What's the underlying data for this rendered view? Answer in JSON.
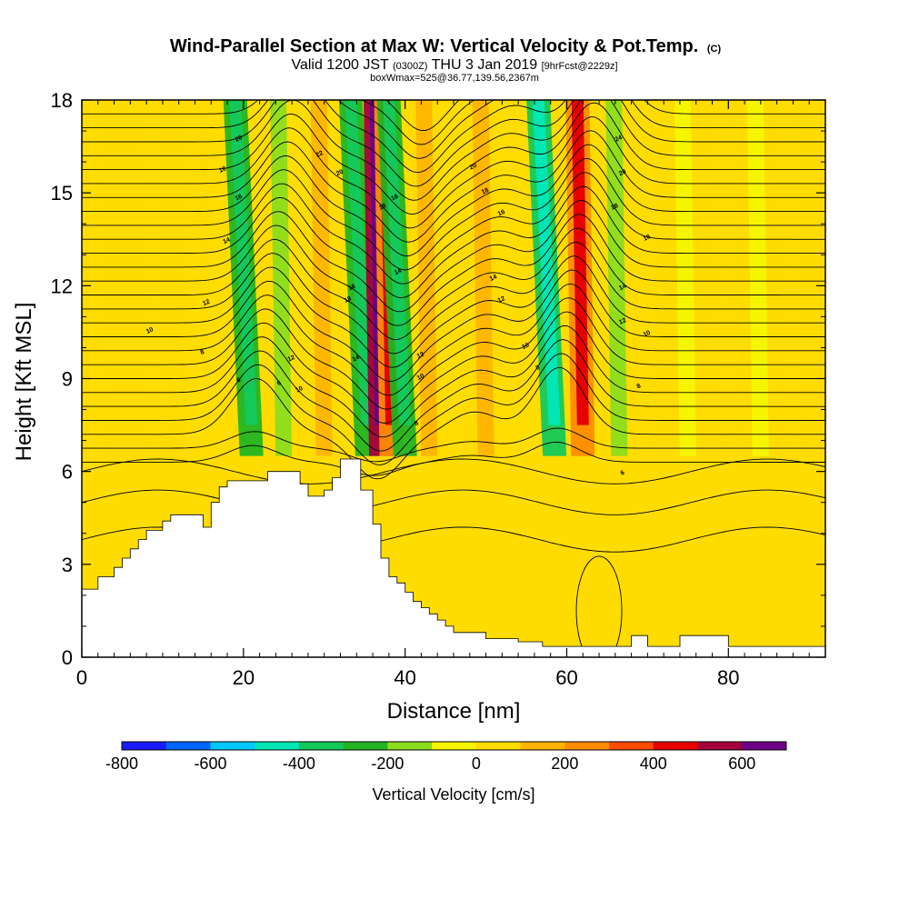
{
  "chart_data": {
    "type": "heatmap",
    "title": "Wind-Parallel Section at Max W: Vertical Velocity & Pot.Temp.",
    "title_mark": "(C)",
    "subtitle_parts": [
      "Valid 1200 JST ",
      "(0300Z)",
      " THU 3 Jan 2019 ",
      "[9hrFcst@2229z]"
    ],
    "subtitle2": "boxWmax=525@36.77,139.56,2367m",
    "xlabel": "Distance [nm]",
    "ylabel": "Height [Kft MSL]",
    "xlim": [
      0,
      92
    ],
    "ylim": [
      0,
      18
    ],
    "xticks": [
      0,
      20,
      40,
      60,
      80
    ],
    "xtick_labels": [
      "0",
      "20",
      "40",
      "60",
      "80"
    ],
    "yticks": [
      0,
      3,
      6,
      9,
      12,
      15,
      18
    ],
    "ytick_labels": [
      "0",
      "3",
      "6",
      "9",
      "12",
      "15",
      "18"
    ],
    "colorbar": {
      "label": "Vertical Velocity [cm/s]",
      "range": [
        -800,
        700
      ],
      "tick_values": [
        -800,
        -600,
        -400,
        -200,
        0,
        200,
        400,
        600
      ],
      "tick_labels": [
        "-800",
        "-600",
        "-400",
        "-200",
        "0",
        "200",
        "400",
        "600"
      ],
      "colors": [
        "#1a1aff",
        "#0066ff",
        "#00c8ff",
        "#00e6b4",
        "#14c85a",
        "#22b422",
        "#8cdc1e",
        "#f5f500",
        "#ffdc00",
        "#ffb400",
        "#ff8c00",
        "#ff4b00",
        "#e60000",
        "#a5003c",
        "#6e0087"
      ]
    },
    "velocity_columns": [
      {
        "x": 2,
        "w": 0,
        "pos": "full"
      },
      {
        "x": 9,
        "w": 40
      },
      {
        "x": 14,
        "w": 60
      },
      {
        "x": 17,
        "w": 90
      },
      {
        "x": 21,
        "w": -300
      },
      {
        "x": 25,
        "w": -150
      },
      {
        "x": 27,
        "w": 70
      },
      {
        "x": 30,
        "w": 130
      },
      {
        "x": 33.5,
        "w": 20
      },
      {
        "x": 35.3,
        "w": -260
      },
      {
        "x": 37,
        "w": 525
      },
      {
        "x": 38.3,
        "w": 250
      },
      {
        "x": 40,
        "w": -280
      },
      {
        "x": 43,
        "w": 120
      },
      {
        "x": 46,
        "w": 40
      },
      {
        "x": 50,
        "w": 150
      },
      {
        "x": 53,
        "w": 60
      },
      {
        "x": 55.5,
        "w": 40
      },
      {
        "x": 58.5,
        "w": -320
      },
      {
        "x": 62,
        "w": 260
      },
      {
        "x": 66.5,
        "w": -160
      },
      {
        "x": 70,
        "w": 70
      },
      {
        "x": 75,
        "w": -40
      },
      {
        "x": 80,
        "w": 60
      },
      {
        "x": 84,
        "w": -30
      },
      {
        "x": 88,
        "w": 80
      }
    ],
    "terrain_kft": [
      [
        0,
        2.2
      ],
      [
        2,
        2.6
      ],
      [
        4,
        2.9
      ],
      [
        5,
        3.2
      ],
      [
        6,
        3.5
      ],
      [
        7,
        3.8
      ],
      [
        8,
        4.1
      ],
      [
        10,
        4.4
      ],
      [
        11,
        4.6
      ],
      [
        15,
        4.2
      ],
      [
        16,
        5.0
      ],
      [
        17,
        5.5
      ],
      [
        18,
        5.7
      ],
      [
        23,
        6.0
      ],
      [
        27,
        5.6
      ],
      [
        28,
        5.2
      ],
      [
        30,
        5.4
      ],
      [
        31,
        5.8
      ],
      [
        32,
        6.4
      ],
      [
        34.5,
        5.4
      ],
      [
        36,
        4.3
      ],
      [
        37,
        3.2
      ],
      [
        38,
        2.6
      ],
      [
        39,
        2.4
      ],
      [
        40,
        2.1
      ],
      [
        41,
        1.8
      ],
      [
        42,
        1.6
      ],
      [
        43,
        1.4
      ],
      [
        44,
        1.2
      ],
      [
        45,
        1.0
      ],
      [
        46,
        0.8
      ],
      [
        50,
        0.6
      ],
      [
        54,
        0.5
      ],
      [
        57,
        0.35
      ],
      [
        67,
        0.35
      ],
      [
        68,
        0.7
      ],
      [
        70,
        0.35
      ],
      [
        73,
        0.35
      ],
      [
        74,
        0.7
      ],
      [
        80,
        0.35
      ],
      [
        92,
        0.35
      ]
    ],
    "isentrope_labels": [
      {
        "text": "10",
        "x": 8.5,
        "y": 10.5
      },
      {
        "text": "12",
        "x": 15.5,
        "y": 11.4
      },
      {
        "text": "14",
        "x": 18,
        "y": 13.4
      },
      {
        "text": "16",
        "x": 19.5,
        "y": 14.8
      },
      {
        "text": "18",
        "x": 17.5,
        "y": 15.7
      },
      {
        "text": "20",
        "x": 19.5,
        "y": 16.7
      },
      {
        "text": "8",
        "x": 15,
        "y": 9.8
      },
      {
        "text": "6",
        "x": 19.5,
        "y": 8.9
      },
      {
        "text": "6",
        "x": 24.5,
        "y": 8.8
      },
      {
        "text": "10",
        "x": 27,
        "y": 8.6
      },
      {
        "text": "12",
        "x": 26,
        "y": 9.6
      },
      {
        "text": "22",
        "x": 29.5,
        "y": 16.2
      },
      {
        "text": "20",
        "x": 32,
        "y": 15.6
      },
      {
        "text": "18",
        "x": 33,
        "y": 11.5
      },
      {
        "text": "16",
        "x": 33.5,
        "y": 11.9
      },
      {
        "text": "14",
        "x": 34,
        "y": 9.6
      },
      {
        "text": "18",
        "x": 37.3,
        "y": 14.5
      },
      {
        "text": "16",
        "x": 38.8,
        "y": 14.8
      },
      {
        "text": "14",
        "x": 39.2,
        "y": 12.4
      },
      {
        "text": "12",
        "x": 42,
        "y": 9.7
      },
      {
        "text": "10",
        "x": 42,
        "y": 9.0
      },
      {
        "text": "8",
        "x": 41.5,
        "y": 7.5
      },
      {
        "text": "20",
        "x": 48.5,
        "y": 15.8
      },
      {
        "text": "18",
        "x": 50,
        "y": 15.0
      },
      {
        "text": "16",
        "x": 52,
        "y": 14.3
      },
      {
        "text": "14",
        "x": 51,
        "y": 12.2
      },
      {
        "text": "12",
        "x": 52,
        "y": 11.5
      },
      {
        "text": "10",
        "x": 55,
        "y": 10.0
      },
      {
        "text": "8",
        "x": 56.5,
        "y": 9.3
      },
      {
        "text": "24",
        "x": 66.5,
        "y": 16.7
      },
      {
        "text": "20",
        "x": 67,
        "y": 15.6
      },
      {
        "text": "18",
        "x": 66,
        "y": 14.5
      },
      {
        "text": "16",
        "x": 70,
        "y": 13.5
      },
      {
        "text": "14",
        "x": 67,
        "y": 11.9
      },
      {
        "text": "12",
        "x": 67,
        "y": 10.8
      },
      {
        "text": "10",
        "x": 70,
        "y": 10.4
      },
      {
        "text": "8",
        "x": 69,
        "y": 8.7
      },
      {
        "text": "6",
        "x": 67,
        "y": 5.9
      }
    ]
  }
}
